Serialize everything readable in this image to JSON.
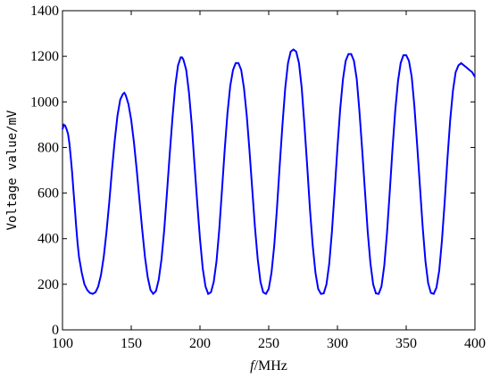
{
  "chart_data": {
    "type": "line",
    "xlabel_italic": "f",
    "xlabel_rest": "/MHz",
    "ylabel": "Voltage value/mV",
    "xlim": [
      100,
      400
    ],
    "ylim": [
      0,
      1400
    ],
    "x_ticks": [
      "100",
      "150",
      "200",
      "250",
      "300",
      "350",
      "400"
    ],
    "y_ticks": [
      "0",
      "200",
      "400",
      "600",
      "800",
      "1000",
      "1200",
      "1400"
    ],
    "grid": false,
    "color": "#0000ff",
    "series": [
      {
        "points": [
          [
            100,
            880
          ],
          [
            101,
            900
          ],
          [
            102,
            895
          ],
          [
            103,
            880
          ],
          [
            104,
            860
          ],
          [
            105,
            820
          ],
          [
            106,
            760
          ],
          [
            107,
            690
          ],
          [
            108,
            610
          ],
          [
            109,
            530
          ],
          [
            110,
            450
          ],
          [
            111,
            380
          ],
          [
            112,
            320
          ],
          [
            114,
            250
          ],
          [
            116,
            200
          ],
          [
            118,
            175
          ],
          [
            120,
            162
          ],
          [
            122,
            158
          ],
          [
            124,
            165
          ],
          [
            126,
            190
          ],
          [
            128,
            240
          ],
          [
            130,
            320
          ],
          [
            132,
            430
          ],
          [
            134,
            560
          ],
          [
            136,
            700
          ],
          [
            138,
            830
          ],
          [
            140,
            940
          ],
          [
            142,
            1010
          ],
          [
            144,
            1035
          ],
          [
            145,
            1040
          ],
          [
            146,
            1030
          ],
          [
            148,
            990
          ],
          [
            150,
            920
          ],
          [
            152,
            820
          ],
          [
            154,
            700
          ],
          [
            156,
            570
          ],
          [
            158,
            440
          ],
          [
            160,
            320
          ],
          [
            162,
            230
          ],
          [
            164,
            175
          ],
          [
            166,
            158
          ],
          [
            168,
            170
          ],
          [
            170,
            220
          ],
          [
            172,
            310
          ],
          [
            174,
            440
          ],
          [
            176,
            600
          ],
          [
            178,
            770
          ],
          [
            180,
            930
          ],
          [
            182,
            1070
          ],
          [
            184,
            1160
          ],
          [
            186,
            1195
          ],
          [
            187,
            1195
          ],
          [
            188,
            1185
          ],
          [
            190,
            1140
          ],
          [
            192,
            1040
          ],
          [
            194,
            900
          ],
          [
            196,
            730
          ],
          [
            198,
            560
          ],
          [
            200,
            400
          ],
          [
            202,
            270
          ],
          [
            204,
            190
          ],
          [
            206,
            158
          ],
          [
            208,
            165
          ],
          [
            210,
            210
          ],
          [
            212,
            300
          ],
          [
            214,
            440
          ],
          [
            216,
            610
          ],
          [
            218,
            790
          ],
          [
            220,
            950
          ],
          [
            222,
            1070
          ],
          [
            224,
            1140
          ],
          [
            226,
            1170
          ],
          [
            228,
            1170
          ],
          [
            230,
            1140
          ],
          [
            232,
            1060
          ],
          [
            234,
            940
          ],
          [
            236,
            790
          ],
          [
            238,
            620
          ],
          [
            240,
            450
          ],
          [
            242,
            310
          ],
          [
            244,
            210
          ],
          [
            246,
            165
          ],
          [
            248,
            158
          ],
          [
            250,
            180
          ],
          [
            252,
            250
          ],
          [
            254,
            370
          ],
          [
            256,
            530
          ],
          [
            258,
            720
          ],
          [
            260,
            900
          ],
          [
            262,
            1060
          ],
          [
            264,
            1170
          ],
          [
            266,
            1220
          ],
          [
            268,
            1230
          ],
          [
            270,
            1220
          ],
          [
            272,
            1170
          ],
          [
            274,
            1060
          ],
          [
            276,
            900
          ],
          [
            278,
            720
          ],
          [
            280,
            530
          ],
          [
            282,
            370
          ],
          [
            284,
            250
          ],
          [
            286,
            180
          ],
          [
            288,
            158
          ],
          [
            290,
            160
          ],
          [
            292,
            200
          ],
          [
            294,
            290
          ],
          [
            296,
            430
          ],
          [
            298,
            610
          ],
          [
            300,
            800
          ],
          [
            302,
            970
          ],
          [
            304,
            1100
          ],
          [
            306,
            1180
          ],
          [
            308,
            1210
          ],
          [
            310,
            1210
          ],
          [
            312,
            1180
          ],
          [
            314,
            1100
          ],
          [
            316,
            960
          ],
          [
            318,
            790
          ],
          [
            320,
            610
          ],
          [
            322,
            430
          ],
          [
            324,
            290
          ],
          [
            326,
            200
          ],
          [
            328,
            160
          ],
          [
            330,
            158
          ],
          [
            332,
            190
          ],
          [
            334,
            280
          ],
          [
            336,
            420
          ],
          [
            338,
            600
          ],
          [
            340,
            790
          ],
          [
            342,
            960
          ],
          [
            344,
            1090
          ],
          [
            346,
            1170
          ],
          [
            348,
            1205
          ],
          [
            350,
            1205
          ],
          [
            352,
            1180
          ],
          [
            354,
            1110
          ],
          [
            356,
            980
          ],
          [
            358,
            810
          ],
          [
            360,
            630
          ],
          [
            362,
            450
          ],
          [
            364,
            300
          ],
          [
            366,
            205
          ],
          [
            368,
            162
          ],
          [
            370,
            158
          ],
          [
            372,
            185
          ],
          [
            374,
            260
          ],
          [
            376,
            390
          ],
          [
            378,
            560
          ],
          [
            380,
            750
          ],
          [
            382,
            920
          ],
          [
            384,
            1050
          ],
          [
            386,
            1130
          ],
          [
            388,
            1160
          ],
          [
            390,
            1170
          ],
          [
            392,
            1160
          ],
          [
            394,
            1150
          ],
          [
            396,
            1140
          ],
          [
            398,
            1130
          ],
          [
            400,
            1110
          ]
        ]
      }
    ]
  }
}
